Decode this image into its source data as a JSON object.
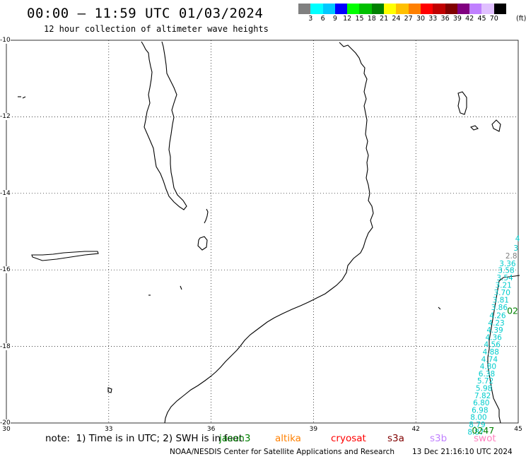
{
  "header": {
    "title": "00:00 – 11:59 UTC 01/03/2024",
    "subtitle": "12 hour collection of altimeter wave heights"
  },
  "colorbar": {
    "colors": [
      "#808080",
      "#00ffff",
      "#00c8ff",
      "#0000ff",
      "#00ff00",
      "#00c000",
      "#008000",
      "#ffff00",
      "#ffc000",
      "#ff8000",
      "#ff0000",
      "#c00000",
      "#800000",
      "#800080",
      "#c080ff",
      "#e0c0ff",
      "#000000"
    ],
    "labels": [
      "3",
      "6",
      "9",
      "12",
      "15",
      "18",
      "21",
      "24",
      "27",
      "30",
      "33",
      "36",
      "39",
      "42",
      "45",
      "70"
    ],
    "unit": "(ft)"
  },
  "map": {
    "lat_ticks": [
      "-10",
      "-12",
      "-14",
      "-16",
      "-18",
      "-20"
    ],
    "lon_ticks": [
      "30",
      "33",
      "36",
      "39",
      "42",
      "45"
    ],
    "track": {
      "color": "#00cccc",
      "points": [
        {
          "lon": 45.05,
          "lat": -15.25,
          "label": "4"
        },
        {
          "lon": 45.0,
          "lat": -15.5,
          "label": "3"
        },
        {
          "lon": 44.97,
          "lat": -15.7,
          "label": "2.8",
          "color": "#808080"
        },
        {
          "lon": 44.93,
          "lat": -15.9,
          "label": "3.36"
        },
        {
          "lon": 44.89,
          "lat": -16.08,
          "label": "3.58"
        },
        {
          "lon": 44.85,
          "lat": -16.27,
          "label": "3.54"
        },
        {
          "lon": 44.81,
          "lat": -16.47,
          "label": "3.21"
        },
        {
          "lon": 44.77,
          "lat": -16.66,
          "label": "3.70"
        },
        {
          "lon": 44.73,
          "lat": -16.85,
          "label": "3.81"
        },
        {
          "lon": 44.69,
          "lat": -17.05,
          "label": "3.86"
        },
        {
          "lon": 44.64,
          "lat": -17.26,
          "label": "4.26"
        },
        {
          "lon": 44.6,
          "lat": -17.45,
          "label": "4.23"
        },
        {
          "lon": 44.56,
          "lat": -17.64,
          "label": "4.39"
        },
        {
          "lon": 44.52,
          "lat": -17.83,
          "label": "4.36"
        },
        {
          "lon": 44.48,
          "lat": -18.02,
          "label": "4.56"
        },
        {
          "lon": 44.44,
          "lat": -18.21,
          "label": "4.88"
        },
        {
          "lon": 44.4,
          "lat": -18.4,
          "label": "4.74"
        },
        {
          "lon": 44.36,
          "lat": -18.59,
          "label": "4.80"
        },
        {
          "lon": 44.32,
          "lat": -18.78,
          "label": "6.38"
        },
        {
          "lon": 44.28,
          "lat": -18.97,
          "label": "5.72"
        },
        {
          "lon": 44.24,
          "lat": -19.16,
          "label": "5.98"
        },
        {
          "lon": 44.2,
          "lat": -19.35,
          "label": "7.82"
        },
        {
          "lon": 44.16,
          "lat": -19.54,
          "label": "6.80"
        },
        {
          "lon": 44.12,
          "lat": -19.73,
          "label": "6.98"
        },
        {
          "lon": 44.08,
          "lat": -19.92,
          "label": "8.00"
        },
        {
          "lon": 44.04,
          "lat": -20.11,
          "label": "8.79"
        },
        {
          "lon": 44.0,
          "lat": -20.3,
          "label": "8.87"
        }
      ],
      "pass_labels": [
        {
          "text": "0247",
          "lon": 44.3,
          "lat": -20.28,
          "color": "#008000"
        },
        {
          "text": "02",
          "lon": 45.0,
          "lat": -17.15,
          "color": "#008000"
        }
      ]
    }
  },
  "note": {
    "text": "note:  1) Time is in UTC; 2) SWH is in feet",
    "missions": [
      {
        "name": "jason3",
        "color": "#008000"
      },
      {
        "name": "altika",
        "color": "#ff8000"
      },
      {
        "name": "cryosat",
        "color": "#ff0000"
      },
      {
        "name": "s3a",
        "color": "#800000"
      },
      {
        "name": "s3b",
        "color": "#c080ff"
      },
      {
        "name": "swot",
        "color": "#ff80c0"
      }
    ]
  },
  "footer": {
    "left": "NOAA/NESDIS Center for Satellite Applications and Research",
    "right": "13 Dec 21:16:10 UTC 2024"
  }
}
